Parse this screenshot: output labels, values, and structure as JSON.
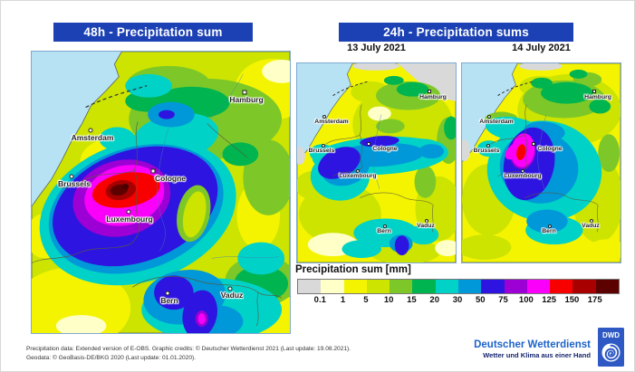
{
  "header": {
    "left_title": "48h - Precipitation sum",
    "right_title": "24h - Precipitation sums"
  },
  "dates": {
    "map1": "13 July 2021",
    "map2": "14 July 2021"
  },
  "cities": {
    "amsterdam": "Amsterdam",
    "hamburg": "Hamburg",
    "brussels": "Brussels",
    "cologne": "Cologne",
    "luxembourg": "Luxembourg",
    "bern": "Bern",
    "vaduz": "Vaduz"
  },
  "legend": {
    "title": "Precipitation sum [mm]",
    "tick_labels": [
      "0.1",
      "1",
      "5",
      "10",
      "15",
      "20",
      "30",
      "50",
      "75",
      "100",
      "125",
      "150",
      "175"
    ],
    "colors": [
      "#d9d9d9",
      "#ffffc8",
      "#f4f400",
      "#cce400",
      "#7dc828",
      "#00b450",
      "#00d2c8",
      "#0098d8",
      "#2e14e0",
      "#9c00d4",
      "#fa00fa",
      "#f80000",
      "#a80000",
      "#5c0000"
    ]
  },
  "footer": {
    "line1": "Precipitation data: Extended version of E-OBS. Graphic credits: © Deutscher Wetterdienst 2021 (Last update: 19.08.2021).",
    "line2": "Geodata: © GeoBasis-DE/BKG 2020 (Last update: 01.01.2020)."
  },
  "branding": {
    "name": "Deutscher Wetterdienst",
    "tagline": "Wetter und Klima aus einer Hand",
    "logo_text": "DWD"
  },
  "colors": {
    "title_bar": "#1c41b4",
    "sea": "#b6e2f4",
    "brand_blue": "#1e64c8",
    "brand_navy": "#16246e"
  }
}
